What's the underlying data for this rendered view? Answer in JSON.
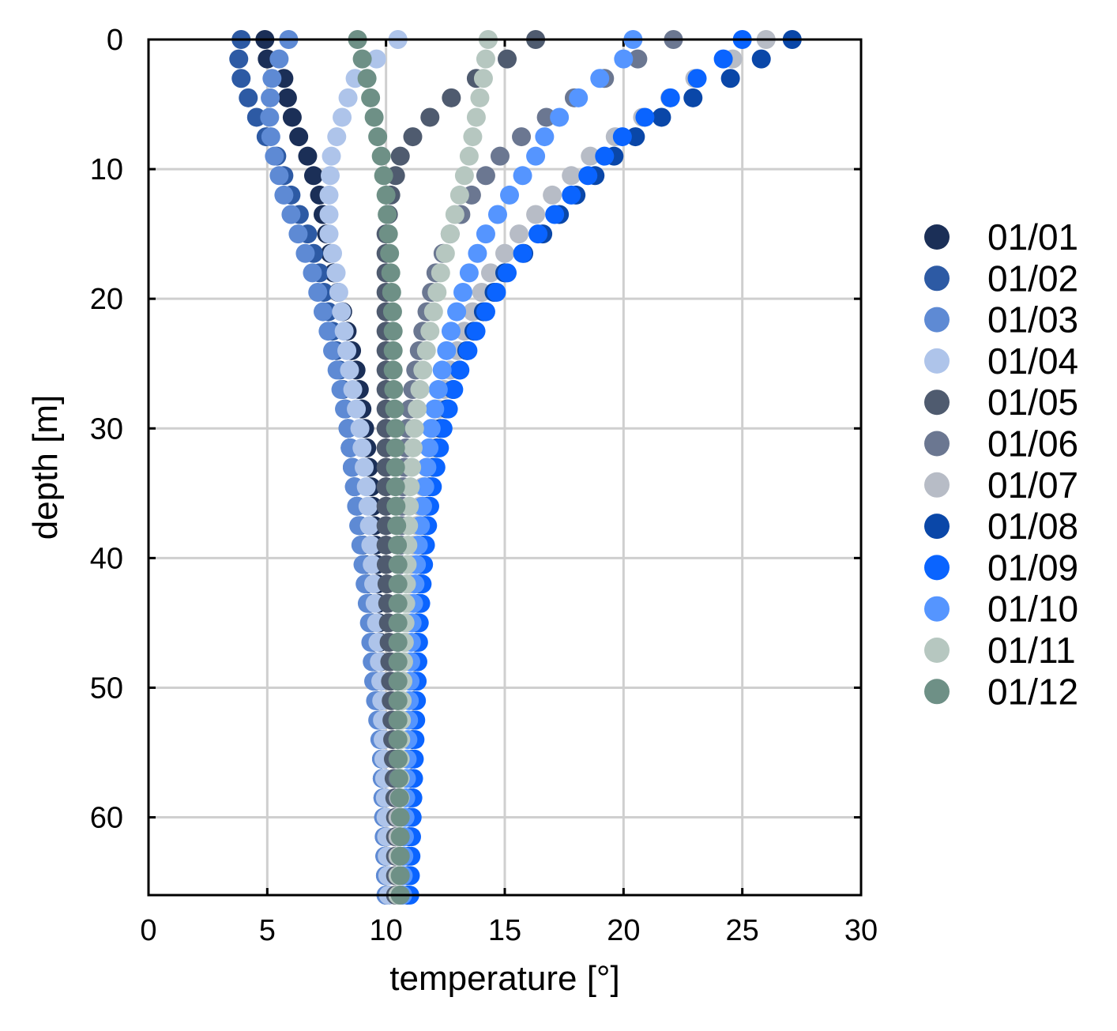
{
  "chart_data": {
    "type": "scatter",
    "xlabel": "temperature [°]",
    "ylabel": "depth [m]",
    "xlim": [
      0,
      30
    ],
    "ylim": [
      0,
      66
    ],
    "y_inverted": true,
    "grid": true,
    "legend_placement": "right",
    "x_ticks": [
      0,
      5,
      10,
      15,
      20,
      25,
      30
    ],
    "y_ticks": [
      0,
      10,
      20,
      30,
      40,
      50,
      60
    ],
    "x_tick_labels": [
      "0",
      "5",
      "10",
      "15",
      "20",
      "25",
      "30"
    ],
    "y_tick_labels": [
      "0",
      "10",
      "20",
      "30",
      "40",
      "50",
      "60"
    ],
    "depth_step": 1.5,
    "series": [
      {
        "name": "01/01",
        "color": "#1b2f57",
        "knots_depth": [
          0,
          1.5,
          3,
          5,
          7,
          9,
          12,
          15,
          18,
          22,
          26,
          30,
          35,
          40,
          45,
          50,
          55,
          60,
          66
        ],
        "knots_temp": [
          4.9,
          5.0,
          5.7,
          5.9,
          6.2,
          6.7,
          7.2,
          7.5,
          7.8,
          8.3,
          8.8,
          9.1,
          9.4,
          9.6,
          9.7,
          9.8,
          9.9,
          10.0,
          10.1
        ]
      },
      {
        "name": "01/02",
        "color": "#2d5aa4",
        "knots_depth": [
          0,
          1.5,
          3,
          5,
          7,
          9,
          12,
          15,
          18,
          22,
          26,
          30,
          35,
          40,
          45,
          50,
          55,
          60,
          66
        ],
        "knots_temp": [
          3.9,
          3.8,
          3.9,
          4.3,
          4.8,
          5.4,
          6.0,
          6.7,
          7.2,
          7.7,
          8.1,
          8.4,
          8.7,
          9.1,
          9.4,
          9.6,
          9.8,
          9.9,
          10.0
        ]
      },
      {
        "name": "01/03",
        "color": "#5e8ad4",
        "knots_depth": [
          0,
          1.5,
          3,
          5,
          7,
          9,
          12,
          15,
          18,
          22,
          26,
          30,
          35,
          40,
          45,
          50,
          55,
          60,
          66
        ],
        "knots_temp": [
          5.9,
          5.5,
          5.2,
          5.1,
          5.1,
          5.3,
          5.7,
          6.3,
          6.9,
          7.5,
          8.0,
          8.4,
          8.7,
          9.0,
          9.3,
          9.5,
          9.8,
          9.9,
          10.0
        ]
      },
      {
        "name": "01/04",
        "color": "#aec4ea",
        "knots_depth": [
          0,
          1.5,
          3,
          5,
          7,
          9,
          12,
          15,
          18,
          22,
          26,
          30,
          35,
          40,
          45,
          50,
          55,
          60,
          66
        ],
        "knots_temp": [
          10.5,
          9.6,
          8.7,
          8.3,
          8.0,
          7.7,
          7.6,
          7.6,
          7.9,
          8.2,
          8.5,
          8.9,
          9.2,
          9.4,
          9.6,
          9.8,
          9.9,
          10.0,
          10.1
        ]
      },
      {
        "name": "01/05",
        "color": "#4f5b6f",
        "knots_depth": [
          0,
          1.5,
          3,
          5,
          7,
          9,
          12,
          15,
          18,
          22,
          26,
          30,
          35,
          40,
          45,
          50,
          55,
          60,
          66
        ],
        "knots_temp": [
          16.3,
          15.1,
          13.8,
          12.4,
          11.3,
          10.6,
          10.2,
          10.0,
          10.0,
          10.0,
          10.0,
          10.0,
          10.0,
          10.0,
          10.1,
          10.2,
          10.3,
          10.4,
          10.4
        ]
      },
      {
        "name": "01/06",
        "color": "#6b7791",
        "knots_depth": [
          0,
          1.5,
          3,
          5,
          7,
          9,
          12,
          15,
          18,
          22,
          26,
          30,
          35,
          40,
          45,
          50,
          55,
          60,
          66
        ],
        "knots_temp": [
          22.1,
          20.6,
          19.2,
          17.5,
          16.0,
          14.8,
          13.6,
          12.7,
          12.1,
          11.6,
          11.2,
          10.9,
          10.7,
          10.6,
          10.5,
          10.5,
          10.5,
          10.5,
          10.5
        ]
      },
      {
        "name": "01/07",
        "color": "#b7bcc6",
        "knots_depth": [
          0,
          1.5,
          3,
          5,
          7,
          9,
          12,
          15,
          18,
          22,
          26,
          30,
          35,
          40,
          45,
          50,
          55,
          60,
          66
        ],
        "knots_temp": [
          26.0,
          24.6,
          23.0,
          21.6,
          20.0,
          18.6,
          17.0,
          15.6,
          14.4,
          13.4,
          12.6,
          12.0,
          11.5,
          11.1,
          10.9,
          10.7,
          10.6,
          10.5,
          10.5
        ]
      },
      {
        "name": "01/08",
        "color": "#0a47a8",
        "knots_depth": [
          0,
          1.5,
          3,
          5,
          7,
          9,
          12,
          15,
          18,
          22,
          26,
          30,
          35,
          40,
          45,
          50,
          55,
          60,
          66
        ],
        "knots_temp": [
          27.1,
          25.8,
          24.5,
          22.4,
          20.8,
          19.6,
          18.0,
          16.6,
          15.0,
          13.8,
          13.0,
          12.3,
          11.8,
          11.5,
          11.3,
          11.2,
          11.1,
          11.0,
          10.9
        ]
      },
      {
        "name": "01/09",
        "color": "#0a64ff",
        "knots_depth": [
          0,
          1.5,
          3,
          5,
          7,
          9,
          12,
          15,
          18,
          22,
          26,
          30,
          35,
          40,
          45,
          50,
          55,
          60,
          66
        ],
        "knots_temp": [
          25.0,
          24.2,
          23.1,
          21.6,
          20.2,
          19.2,
          17.8,
          16.4,
          15.1,
          13.9,
          13.0,
          12.4,
          11.9,
          11.6,
          11.4,
          11.3,
          11.2,
          11.1,
          11.0
        ]
      },
      {
        "name": "01/10",
        "color": "#5595ff",
        "knots_depth": [
          0,
          1.5,
          3,
          5,
          7,
          9,
          12,
          15,
          18,
          22,
          26,
          30,
          35,
          40,
          45,
          50,
          55,
          60,
          66
        ],
        "knots_temp": [
          20.4,
          20.0,
          19.0,
          17.8,
          16.8,
          16.3,
          15.2,
          14.2,
          13.5,
          12.8,
          12.3,
          11.9,
          11.6,
          11.3,
          11.1,
          11.0,
          10.9,
          10.8,
          10.7
        ]
      },
      {
        "name": "01/11",
        "color": "#b6c7c0",
        "knots_depth": [
          0,
          1.5,
          3,
          5,
          7,
          9,
          12,
          15,
          18,
          22,
          26,
          30,
          35,
          40,
          45,
          50,
          55,
          60,
          66
        ],
        "knots_temp": [
          14.3,
          14.2,
          14.1,
          13.9,
          13.7,
          13.5,
          13.1,
          12.7,
          12.3,
          11.9,
          11.5,
          11.2,
          11.0,
          10.9,
          10.8,
          10.7,
          10.6,
          10.6,
          10.5
        ]
      },
      {
        "name": "01/12",
        "color": "#6e9086",
        "knots_depth": [
          0,
          1.5,
          3,
          5,
          7,
          9,
          12,
          15,
          18,
          22,
          26,
          30,
          35,
          40,
          45,
          50,
          55,
          60,
          66
        ],
        "knots_temp": [
          8.8,
          9.0,
          9.2,
          9.4,
          9.6,
          9.8,
          10.0,
          10.1,
          10.2,
          10.3,
          10.3,
          10.4,
          10.4,
          10.5,
          10.5,
          10.5,
          10.5,
          10.6,
          10.6
        ]
      }
    ]
  }
}
